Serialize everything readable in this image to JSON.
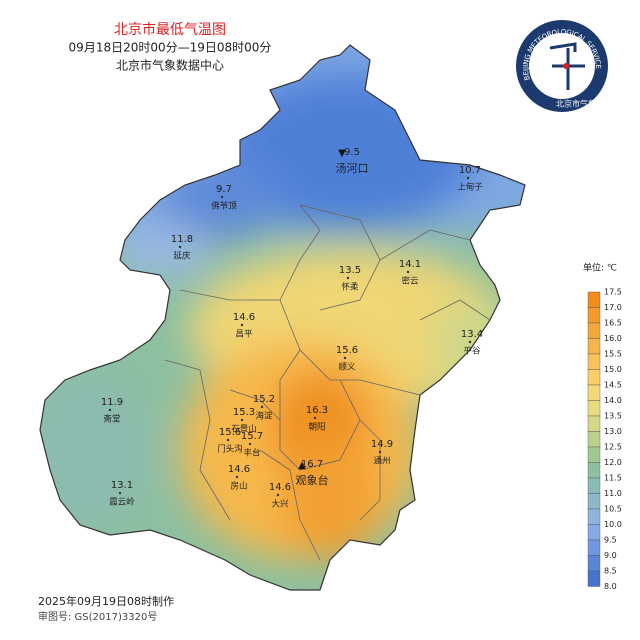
{
  "header": {
    "title": "北京市最低气温图",
    "period": "09月18日20时00分—19日08时00分",
    "source": "北京市气象数据中心"
  },
  "logo": {
    "ring": "BEIJING METEOROLOGICAL SERVICE",
    "name": "北京市气象局"
  },
  "stations": [
    {
      "value": 9.5,
      "name": "汤河口",
      "symbol": "▼"
    },
    {
      "value": 10.7,
      "name": "上甸子"
    },
    {
      "value": 9.7,
      "name": "佛爷顶"
    },
    {
      "value": 11.8,
      "name": "延庆"
    },
    {
      "value": 13.5,
      "name": "怀柔"
    },
    {
      "value": 14.1,
      "name": "密云"
    },
    {
      "value": 14.6,
      "name": "昌平"
    },
    {
      "value": 13.4,
      "name": "平谷"
    },
    {
      "value": 15.6,
      "name": "顺义"
    },
    {
      "value": 11.9,
      "name": "斋堂"
    },
    {
      "value": 15.2,
      "name": "海淀"
    },
    {
      "value": 15.3,
      "name": "石景山"
    },
    {
      "value": 16.3,
      "name": "朝阳"
    },
    {
      "value": 15.6,
      "name": "门头沟"
    },
    {
      "value": 15.7,
      "name": "丰台"
    },
    {
      "value": 14.9,
      "name": "通州"
    },
    {
      "value": 14.6,
      "name": "房山"
    },
    {
      "value": 16.7,
      "name": "观象台",
      "symbol": "▲"
    },
    {
      "value": 14.6,
      "name": "大兴"
    },
    {
      "value": 13.1,
      "name": "霞云岭"
    }
  ],
  "legend": {
    "unit": "单位: ℃",
    "labels": [
      "17.5",
      "17.0",
      "16.5",
      "16.0",
      "15.5",
      "15.0",
      "14.5",
      "14.0",
      "13.5",
      "13.0",
      "12.5",
      "12.0",
      "11.5",
      "11.0",
      "10.5",
      "10.0",
      "9.5",
      "9.0",
      "8.5",
      "8.0"
    ],
    "colors": [
      "#f08c1e",
      "#f39a2a",
      "#f5a83a",
      "#f6b54a",
      "#f8c25a",
      "#f9cf6a",
      "#f5d878",
      "#e9dc80",
      "#d5d886",
      "#bcd08c",
      "#a2c892",
      "#8cc0a0",
      "#88bcb4",
      "#8cb8c8",
      "#90b4dc",
      "#86aae4",
      "#6f98e0",
      "#5a86d8",
      "#4674cc"
    ]
  },
  "footer": {
    "made": "2025年09月19日08时制作",
    "approval": "审图号: GS(2017)3320号"
  }
}
